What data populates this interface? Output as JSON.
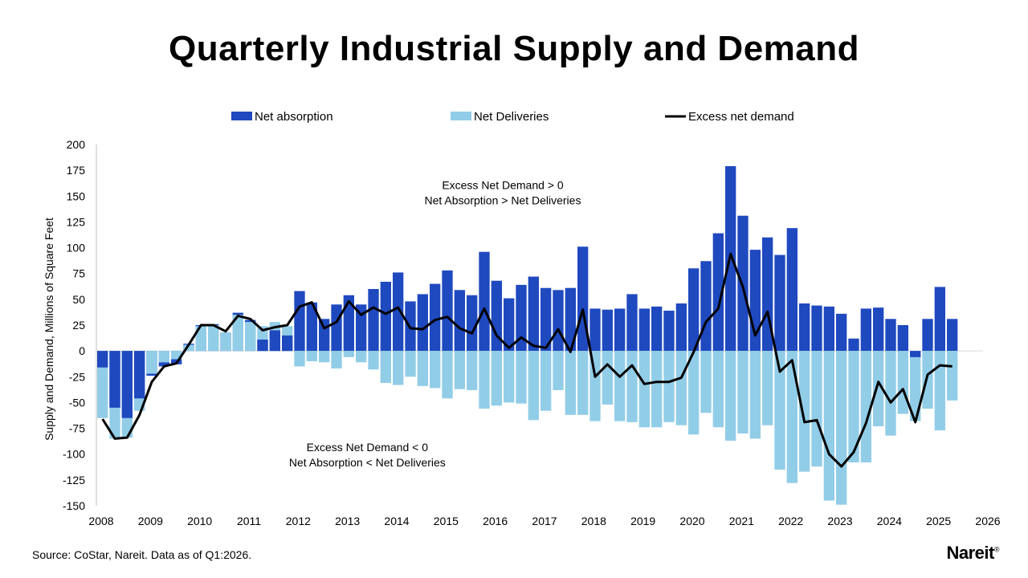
{
  "chart_data": {
    "type": "bar",
    "title": "Quarterly Industrial Supply and Demand",
    "ylabel": "Supply and Demand, Millions of Square Feet",
    "ylim": [
      -150,
      200
    ],
    "yticks": [
      200,
      175,
      150,
      125,
      100,
      75,
      50,
      25,
      0,
      -25,
      -50,
      -75,
      -100,
      -125,
      -150
    ],
    "xtick_labels": [
      "2008",
      "2009",
      "2010",
      "2011",
      "2012",
      "2013",
      "2014",
      "2015",
      "2016",
      "2017",
      "2018",
      "2019",
      "2020",
      "2021",
      "2022",
      "2023",
      "2024",
      "2025",
      "2026"
    ],
    "x_start_year": 2008,
    "grid": false,
    "legend_position": "top",
    "series": [
      {
        "name": "Net absorption",
        "color": "#1f49bf",
        "kind": "bar",
        "values": [
          -16,
          -55,
          -65,
          -46,
          -24,
          -15,
          -13,
          7,
          25,
          26,
          18,
          37,
          30,
          11,
          20,
          15,
          58,
          47,
          31,
          45,
          54,
          45,
          60,
          67,
          76,
          48,
          55,
          65,
          78,
          59,
          54,
          96,
          68,
          51,
          64,
          72,
          61,
          59,
          61,
          101,
          41,
          40,
          41,
          55,
          41,
          43,
          39,
          46,
          80,
          87,
          114,
          179,
          131,
          98,
          110,
          93,
          119,
          46,
          44,
          43,
          36,
          12,
          41,
          42,
          31,
          25,
          -6,
          31,
          62,
          31
        ]
      },
      {
        "name": "Net Deliveries",
        "color": "#92cde8",
        "kind": "bar",
        "values": [
          -65,
          -85,
          -84,
          -58,
          -22,
          -11,
          -8,
          6,
          24,
          25,
          18,
          35,
          28,
          24,
          28,
          24,
          -15,
          -10,
          -11,
          -17,
          -6,
          -11,
          -18,
          -31,
          -33,
          -25,
          -34,
          -36,
          -46,
          -37,
          -38,
          -56,
          -53,
          -50,
          -51,
          -67,
          -58,
          -38,
          -62,
          -62,
          -68,
          -52,
          -68,
          -69,
          -74,
          -74,
          -69,
          -72,
          -81,
          -60,
          -74,
          -87,
          -80,
          -85,
          -72,
          -115,
          -128,
          -117,
          -112,
          -145,
          -149,
          -108,
          -108,
          -73,
          -82,
          -61,
          -68,
          -56,
          -77,
          -48
        ]
      },
      {
        "name": "Excess net demand",
        "color": "#000000",
        "kind": "line",
        "values": [
          -66,
          -85,
          -84,
          -62,
          -30,
          -15,
          -12,
          6,
          25,
          25,
          19,
          34,
          31,
          20,
          23,
          25,
          43,
          47,
          22,
          28,
          48,
          35,
          42,
          36,
          42,
          22,
          21,
          30,
          33,
          22,
          17,
          41,
          15,
          3,
          13,
          5,
          3,
          21,
          -1,
          40,
          -25,
          -13,
          -25,
          -14,
          -32,
          -30,
          -30,
          -26,
          -1,
          28,
          41,
          94,
          62,
          15,
          38,
          -20,
          -9,
          -69,
          -67,
          -100,
          -112,
          -98,
          -70,
          -30,
          -50,
          -37,
          -69,
          -23,
          -14,
          -15
        ]
      }
    ],
    "annotations": [
      {
        "lines": [
          "Excess Net Demand > 0",
          "Net Absorption > Net Deliveries"
        ],
        "year": 2016.25,
        "value": 157
      },
      {
        "lines": [
          "Excess Net Demand < 0",
          "Net Absorption < Net Deliveries"
        ],
        "year": 2013.5,
        "value": -97
      }
    ]
  },
  "footer": {
    "source": "Source: CoStar, Nareit. Data as of Q1:2026.",
    "brand": "Nareit",
    "brand_mark": "®"
  }
}
